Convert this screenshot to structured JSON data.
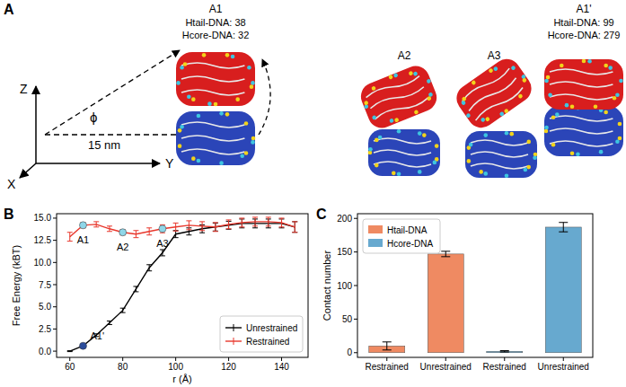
{
  "panel_labels": [
    "A",
    "B",
    "C"
  ],
  "diagram": {
    "axes": {
      "z": "Z",
      "y": "Y",
      "x": "X"
    },
    "angle": "ϕ",
    "distance": "15 nm",
    "states": [
      {
        "label": "A1",
        "texts": [
          "Htail-DNA: 38",
          "Hcore-DNA: 32"
        ]
      },
      {
        "label": "A2",
        "texts": []
      },
      {
        "label": "A3",
        "texts": []
      },
      {
        "label": "A1'",
        "texts": [
          "Htail-DNA: 99",
          "Hcore-DNA: 279"
        ]
      }
    ]
  },
  "chart_data": [
    {
      "type": "line",
      "x_label": "r (Å)",
      "y_label": "Free Energy (kBT)",
      "x": [
        60,
        65,
        70,
        75,
        80,
        85,
        90,
        95,
        100,
        105,
        110,
        115,
        120,
        125,
        130,
        135,
        140,
        145
      ],
      "series": [
        {
          "name": "Unrestrained",
          "color": "#000000",
          "values": [
            0.0,
            0.6,
            1.8,
            3.2,
            4.6,
            7.0,
            9.4,
            11.1,
            13.2,
            13.5,
            13.8,
            14.0,
            14.2,
            14.4,
            14.4,
            14.4,
            14.4,
            14.0
          ],
          "errors": [
            0.05,
            0.1,
            0.15,
            0.2,
            0.25,
            0.3,
            0.35,
            0.35,
            0.4,
            0.4,
            0.45,
            0.45,
            0.45,
            0.5,
            0.5,
            0.5,
            0.5,
            0.6
          ]
        },
        {
          "name": "Restrained",
          "color": "#e8372c",
          "values": [
            12.9,
            14.2,
            14.3,
            13.8,
            13.4,
            13.2,
            13.5,
            13.8,
            14.0,
            14.2,
            14.1,
            14.0,
            14.3,
            14.5,
            14.6,
            14.6,
            14.5,
            14.0
          ],
          "errors": [
            0.5,
            0.3,
            0.3,
            0.3,
            0.3,
            0.4,
            0.4,
            0.45,
            0.45,
            0.5,
            0.5,
            0.5,
            0.5,
            0.5,
            0.5,
            0.5,
            0.5,
            0.6
          ]
        }
      ],
      "annotations": [
        {
          "text": "A1",
          "x": 65,
          "y": 14.2,
          "color": "#8fd6e8"
        },
        {
          "text": "A2",
          "x": 80,
          "y": 13.4,
          "color": "#8fd6e8"
        },
        {
          "text": "A3",
          "x": 95,
          "y": 13.8,
          "color": "#8fd6e8"
        },
        {
          "text": "A1'",
          "x": 65,
          "y": 0.6,
          "color": "#2b4c9b"
        }
      ],
      "xlim": [
        55,
        150
      ],
      "ylim": [
        -0.7,
        15.5
      ],
      "xticks": [
        60,
        80,
        100,
        120,
        140
      ],
      "yticks": [
        {
          "value": 0,
          "label": "0.0"
        },
        2.5,
        {
          "value": 5,
          "label": "5.0"
        },
        7.5,
        {
          "value": 10,
          "label": "10.0"
        },
        12.5,
        {
          "value": 15,
          "label": "15.0"
        }
      ],
      "legend": "lower right"
    },
    {
      "type": "bar",
      "y_label": "Contact number",
      "categories": [
        "Restrained",
        "Unrestrained",
        "Restrained",
        "Unrestrained"
      ],
      "series": [
        {
          "name": "Htail-DNA",
          "color": "#ef8a62",
          "values": [
            10,
            147,
            null,
            null
          ],
          "errors": [
            6,
            4,
            null,
            null
          ]
        },
        {
          "name": "Hcore-DNA",
          "color": "#67a9cf",
          "values": [
            null,
            null,
            2,
            187
          ],
          "errors": [
            null,
            null,
            1,
            7
          ]
        }
      ],
      "ylim": [
        -7,
        207
      ],
      "yticks": [
        0,
        50,
        100,
        150,
        200
      ],
      "legend": "upper left"
    }
  ]
}
